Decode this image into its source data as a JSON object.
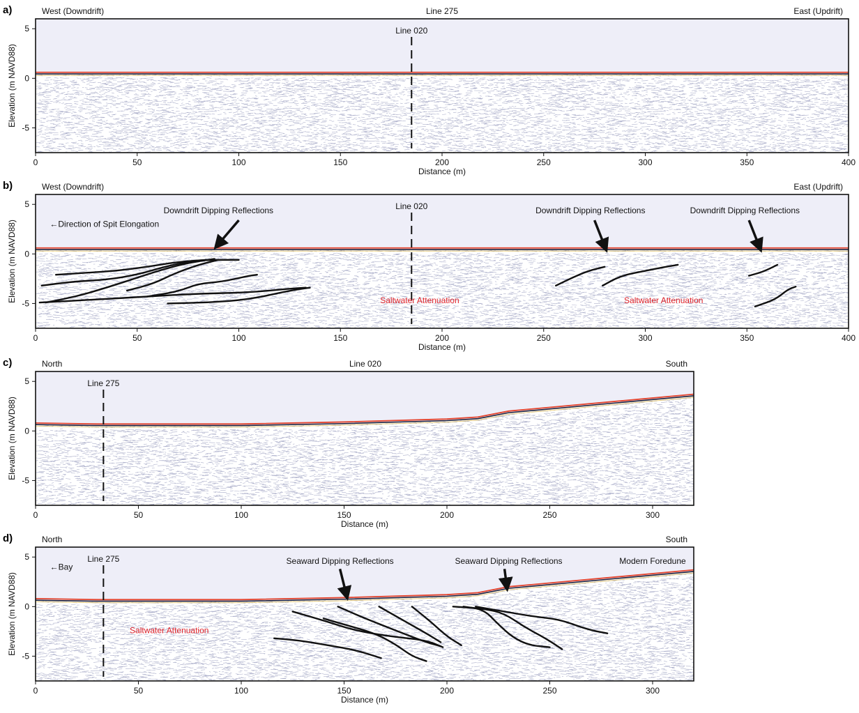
{
  "chart_data": [
    {
      "panel": "a)",
      "type": "gpr-profile",
      "line_label": "Line 275",
      "left_label": "West (Downdrift)",
      "right_label": "East (Updrift)",
      "xlabel": "Distance (m)",
      "ylabel": "Elevation (m NAVD88)",
      "xlim": [
        0,
        400
      ],
      "ylim": [
        -7.5,
        6
      ],
      "xticks": [
        0,
        50,
        100,
        150,
        200,
        250,
        300,
        350,
        400
      ],
      "yticks": [
        5,
        0,
        -5
      ],
      "surface": [
        [
          0,
          0.5
        ],
        [
          400,
          0.5
        ]
      ],
      "crossline": {
        "label": "Line 020",
        "x": 185
      },
      "annotations": [],
      "arrows": [],
      "interpreted_reflectors": [],
      "colors": {
        "surface": "#e3412b",
        "background": "#eeeef8"
      }
    },
    {
      "panel": "b)",
      "type": "gpr-profile",
      "line_label": "",
      "left_label": "West (Downdrift)",
      "right_label": "East (Updrift)",
      "xlabel": "Distance (m)",
      "ylabel": "Elevation (m NAVD88)",
      "xlim": [
        0,
        400
      ],
      "ylim": [
        -7.5,
        6
      ],
      "xticks": [
        0,
        50,
        100,
        150,
        200,
        250,
        300,
        350,
        400
      ],
      "yticks": [
        5,
        0,
        -5
      ],
      "surface": [
        [
          0,
          0.5
        ],
        [
          400,
          0.5
        ]
      ],
      "crossline": {
        "label": "Line 020",
        "x": 185
      },
      "annotations": [
        {
          "text": "←Direction of Spit Elongation",
          "x": 7,
          "y": 3,
          "color": "black"
        },
        {
          "text": "Downdrift Dipping Reflections",
          "x": 90,
          "y": 4.4,
          "color": "black"
        },
        {
          "text": "Downdrift Dipping Reflections",
          "x": 273,
          "y": 4.4,
          "color": "black"
        },
        {
          "text": "Downdrift Dipping Reflections",
          "x": 349,
          "y": 4.4,
          "color": "black"
        },
        {
          "text": "Saltwater Attenuation",
          "x": 189,
          "y": -4.7,
          "color": "red"
        },
        {
          "text": "Saltwater Attenuation",
          "x": 309,
          "y": -4.7,
          "color": "red"
        }
      ],
      "arrows": [
        {
          "from": [
            100,
            3.4
          ],
          "to": [
            90,
            1.0
          ]
        },
        {
          "from": [
            275,
            3.4
          ],
          "to": [
            280,
            0.8
          ]
        },
        {
          "from": [
            351,
            3.4
          ],
          "to": [
            356,
            0.8
          ]
        }
      ],
      "interpreted_reflectors": [
        [
          [
            2,
            -4.9
          ],
          [
            30,
            -4.6
          ],
          [
            55,
            -4.3
          ],
          [
            80,
            -4.0
          ],
          [
            105,
            -3.9
          ],
          [
            125,
            -3.5
          ],
          [
            133,
            -3.4
          ]
        ],
        [
          [
            3,
            -3.2
          ],
          [
            18,
            -2.8
          ],
          [
            35,
            -2.6
          ],
          [
            50,
            -2.1
          ],
          [
            65,
            -1.2
          ],
          [
            78,
            -0.7
          ],
          [
            84,
            -0.6
          ]
        ],
        [
          [
            5,
            -4.9
          ],
          [
            20,
            -4.3
          ],
          [
            35,
            -3.4
          ],
          [
            50,
            -2.4
          ],
          [
            62,
            -1.6
          ],
          [
            75,
            -0.9
          ],
          [
            88,
            -0.5
          ]
        ],
        [
          [
            10,
            -2.1
          ],
          [
            25,
            -1.9
          ],
          [
            40,
            -1.7
          ],
          [
            55,
            -1.3
          ],
          [
            70,
            -0.8
          ],
          [
            84,
            -0.6
          ],
          [
            100,
            -0.6
          ]
        ],
        [
          [
            45,
            -3.7
          ],
          [
            58,
            -3.0
          ],
          [
            68,
            -2.0
          ],
          [
            80,
            -1.1
          ],
          [
            90,
            -0.6
          ]
        ],
        [
          [
            55,
            -4.3
          ],
          [
            70,
            -3.8
          ],
          [
            80,
            -3.0
          ],
          [
            92,
            -2.8
          ],
          [
            105,
            -2.2
          ],
          [
            109,
            -2.1
          ]
        ],
        [
          [
            65,
            -5.0
          ],
          [
            85,
            -4.9
          ],
          [
            105,
            -4.6
          ],
          [
            125,
            -3.7
          ],
          [
            135,
            -3.4
          ]
        ],
        [
          [
            256,
            -3.2
          ],
          [
            264,
            -2.4
          ],
          [
            272,
            -1.7
          ],
          [
            280,
            -1.3
          ]
        ],
        [
          [
            279,
            -3.2
          ],
          [
            288,
            -2.2
          ],
          [
            300,
            -1.7
          ],
          [
            310,
            -1.3
          ],
          [
            316,
            -1.1
          ]
        ],
        [
          [
            351,
            -2.2
          ],
          [
            358,
            -1.8
          ],
          [
            365,
            -1.1
          ]
        ],
        [
          [
            354,
            -5.3
          ],
          [
            364,
            -4.6
          ],
          [
            370,
            -3.6
          ],
          [
            374,
            -3.3
          ]
        ]
      ],
      "colors": {
        "surface": "#e3412b",
        "background": "#eeeef8"
      }
    },
    {
      "panel": "c)",
      "type": "gpr-profile",
      "line_label": "Line 020",
      "left_label": "North",
      "right_label": "South",
      "xlabel": "Distance (m)",
      "ylabel": "Elevation (m NAVD88)",
      "xlim": [
        0,
        320
      ],
      "ylim": [
        -7.5,
        6
      ],
      "xticks": [
        0,
        50,
        100,
        150,
        200,
        250,
        300
      ],
      "yticks": [
        5,
        0,
        -5
      ],
      "surface": [
        [
          0,
          0.7
        ],
        [
          30,
          0.6
        ],
        [
          100,
          0.6
        ],
        [
          150,
          0.8
        ],
        [
          200,
          1.1
        ],
        [
          215,
          1.3
        ],
        [
          230,
          1.9
        ],
        [
          320,
          3.6
        ]
      ],
      "crossline": {
        "label": "Line 275",
        "x": 33
      },
      "annotations": [],
      "arrows": [],
      "interpreted_reflectors": [],
      "colors": {
        "surface": "#e3412b",
        "background": "#eeeef8"
      }
    },
    {
      "panel": "d)",
      "type": "gpr-profile",
      "line_label": "",
      "left_label": "North",
      "right_label": "South",
      "xlabel": "Distance (m)",
      "ylabel": "Elevation (m NAVD88)",
      "xlim": [
        0,
        320
      ],
      "ylim": [
        -7.5,
        6
      ],
      "xticks": [
        0,
        50,
        100,
        150,
        200,
        250,
        300
      ],
      "yticks": [
        5,
        0,
        -5
      ],
      "surface": [
        [
          0,
          0.7
        ],
        [
          30,
          0.6
        ],
        [
          100,
          0.6
        ],
        [
          150,
          0.8
        ],
        [
          200,
          1.1
        ],
        [
          215,
          1.3
        ],
        [
          230,
          1.9
        ],
        [
          320,
          3.6
        ]
      ],
      "crossline": {
        "label": "Line 275",
        "x": 33
      },
      "annotations": [
        {
          "text": "←Bay",
          "x": 7,
          "y": 4,
          "color": "black"
        },
        {
          "text": "Seaward Dipping Reflections",
          "x": 148,
          "y": 4.6,
          "color": "black"
        },
        {
          "text": "Seaward Dipping Reflections",
          "x": 230,
          "y": 4.6,
          "color": "black"
        },
        {
          "text": "Modern Foredune",
          "x": 300,
          "y": 4.6,
          "color": "black"
        },
        {
          "text": "Saltwater Attenuation",
          "x": 65,
          "y": -2.4,
          "color": "red"
        }
      ],
      "arrows": [
        {
          "from": [
            148,
            3.8
          ],
          "to": [
            151,
            1.3
          ]
        },
        {
          "from": [
            228,
            3.8
          ],
          "to": [
            229,
            2.2
          ]
        }
      ],
      "interpreted_reflectors": [
        [
          [
            125,
            -0.5
          ],
          [
            140,
            -1.4
          ],
          [
            155,
            -2.4
          ],
          [
            172,
            -3.0
          ],
          [
            190,
            -3.4
          ],
          [
            198,
            -4.1
          ]
        ],
        [
          [
            116,
            -3.2
          ],
          [
            128,
            -3.4
          ],
          [
            142,
            -3.9
          ],
          [
            156,
            -4.4
          ],
          [
            168,
            -5.2
          ]
        ],
        [
          [
            140,
            -1.2
          ],
          [
            150,
            -1.8
          ],
          [
            165,
            -2.7
          ],
          [
            175,
            -3.8
          ],
          [
            183,
            -5.0
          ],
          [
            190,
            -5.5
          ]
        ],
        [
          [
            147,
            0.0
          ],
          [
            158,
            -1.0
          ],
          [
            170,
            -2.0
          ],
          [
            180,
            -2.8
          ],
          [
            190,
            -3.6
          ],
          [
            197,
            -4.0
          ]
        ],
        [
          [
            167,
            0.0
          ],
          [
            178,
            -1.3
          ],
          [
            190,
            -2.7
          ],
          [
            197,
            -3.6
          ]
        ],
        [
          [
            183,
            0.0
          ],
          [
            192,
            -1.5
          ],
          [
            200,
            -3.0
          ],
          [
            207,
            -3.9
          ]
        ],
        [
          [
            203,
            0.0
          ],
          [
            218,
            -0.2
          ],
          [
            228,
            -0.7
          ],
          [
            238,
            -2.1
          ],
          [
            248,
            -3.2
          ],
          [
            256,
            -4.3
          ]
        ],
        [
          [
            214,
            0.0
          ],
          [
            228,
            -0.5
          ],
          [
            242,
            -1.0
          ],
          [
            255,
            -1.3
          ],
          [
            268,
            -2.3
          ],
          [
            278,
            -2.7
          ]
        ],
        [
          [
            208,
            0.0
          ],
          [
            218,
            -0.3
          ],
          [
            225,
            -1.8
          ],
          [
            232,
            -3.1
          ],
          [
            240,
            -3.9
          ],
          [
            250,
            -4.1
          ]
        ]
      ],
      "colors": {
        "surface": "#e3412b",
        "background": "#eeeef8"
      }
    }
  ]
}
